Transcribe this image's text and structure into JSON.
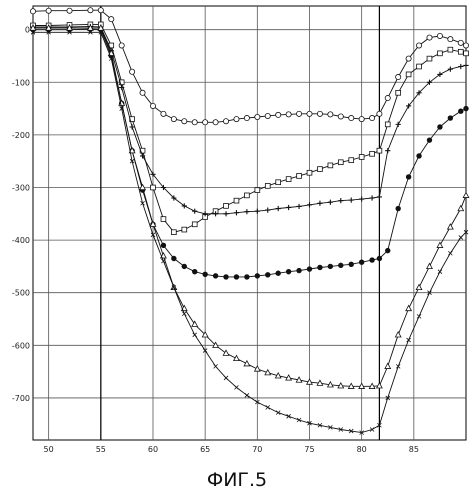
{
  "caption": "ФИГ.5",
  "chart_data": {
    "type": "line",
    "xlim": [
      48.5,
      90
    ],
    "ylim": [
      -780,
      45
    ],
    "grid": true,
    "x_ticks": [
      50,
      55,
      60,
      65,
      70,
      75,
      80,
      85
    ],
    "x_tick_labels": [
      "50",
      "55",
      "60",
      "65",
      "70",
      "75",
      "80",
      "85"
    ],
    "y_ticks": [
      0,
      -100,
      -200,
      -300,
      -400,
      -500,
      -600,
      -700
    ],
    "y_tick_labels": [
      "0",
      "-100",
      "-200",
      "-300",
      "-400",
      "-500",
      "-600",
      "-700"
    ],
    "series": [
      {
        "marker": "circle",
        "points": [
          [
            48.5,
            35
          ],
          [
            50,
            36
          ],
          [
            52,
            36
          ],
          [
            54,
            37
          ],
          [
            55,
            37
          ],
          [
            56,
            20
          ],
          [
            57,
            -30
          ],
          [
            58,
            -80
          ],
          [
            59,
            -120
          ],
          [
            60,
            -145
          ],
          [
            61,
            -160
          ],
          [
            62,
            -170
          ],
          [
            63,
            -174
          ],
          [
            64,
            -176
          ],
          [
            65,
            -176
          ],
          [
            66,
            -176
          ],
          [
            67,
            -174
          ],
          [
            68,
            -170
          ],
          [
            69,
            -168
          ],
          [
            70,
            -166
          ],
          [
            71,
            -164
          ],
          [
            72,
            -162
          ],
          [
            73,
            -161
          ],
          [
            74,
            -160
          ],
          [
            75,
            -160
          ],
          [
            76,
            -160
          ],
          [
            77,
            -161
          ],
          [
            78,
            -165
          ],
          [
            79,
            -168
          ],
          [
            80,
            -170
          ],
          [
            81,
            -168
          ],
          [
            81.7,
            -160
          ],
          [
            82.5,
            -130
          ],
          [
            83.5,
            -90
          ],
          [
            84.5,
            -55
          ],
          [
            85.5,
            -30
          ],
          [
            86.5,
            -15
          ],
          [
            87.5,
            -12
          ],
          [
            88.5,
            -18
          ],
          [
            89.5,
            -25
          ],
          [
            90,
            -30
          ]
        ]
      },
      {
        "marker": "square",
        "points": [
          [
            48.5,
            8
          ],
          [
            50,
            8
          ],
          [
            52,
            9
          ],
          [
            54,
            10
          ],
          [
            55,
            10
          ],
          [
            56,
            -30
          ],
          [
            57,
            -100
          ],
          [
            58,
            -170
          ],
          [
            59,
            -230
          ],
          [
            60,
            -300
          ],
          [
            61,
            -360
          ],
          [
            62,
            -385
          ],
          [
            63,
            -380
          ],
          [
            64,
            -370
          ],
          [
            65,
            -356
          ],
          [
            66,
            -345
          ],
          [
            67,
            -335
          ],
          [
            68,
            -325
          ],
          [
            69,
            -315
          ],
          [
            70,
            -305
          ],
          [
            71,
            -297
          ],
          [
            72,
            -290
          ],
          [
            73,
            -284
          ],
          [
            74,
            -278
          ],
          [
            75,
            -272
          ],
          [
            76,
            -265
          ],
          [
            77,
            -258
          ],
          [
            78,
            -252
          ],
          [
            79,
            -248
          ],
          [
            80,
            -242
          ],
          [
            81,
            -236
          ],
          [
            81.7,
            -230
          ],
          [
            82.5,
            -180
          ],
          [
            83.5,
            -120
          ],
          [
            84.5,
            -85
          ],
          [
            85.5,
            -70
          ],
          [
            86.5,
            -55
          ],
          [
            87.5,
            -45
          ],
          [
            88.5,
            -38
          ],
          [
            89.5,
            -42
          ],
          [
            90,
            -45
          ]
        ]
      },
      {
        "marker": "plus",
        "points": [
          [
            48.5,
            5
          ],
          [
            50,
            5
          ],
          [
            52,
            5
          ],
          [
            54,
            6
          ],
          [
            55,
            5
          ],
          [
            56,
            -40
          ],
          [
            57,
            -110
          ],
          [
            58,
            -185
          ],
          [
            59,
            -240
          ],
          [
            60,
            -275
          ],
          [
            61,
            -300
          ],
          [
            62,
            -320
          ],
          [
            63,
            -335
          ],
          [
            64,
            -345
          ],
          [
            65,
            -350
          ],
          [
            66,
            -350
          ],
          [
            67,
            -350
          ],
          [
            68,
            -348
          ],
          [
            69,
            -346
          ],
          [
            70,
            -345
          ],
          [
            71,
            -343
          ],
          [
            72,
            -340
          ],
          [
            73,
            -338
          ],
          [
            74,
            -336
          ],
          [
            75,
            -333
          ],
          [
            76,
            -330
          ],
          [
            77,
            -328
          ],
          [
            78,
            -325
          ],
          [
            79,
            -324
          ],
          [
            80,
            -322
          ],
          [
            81,
            -320
          ],
          [
            81.7,
            -318
          ],
          [
            82.5,
            -230
          ],
          [
            83.5,
            -180
          ],
          [
            84.5,
            -145
          ],
          [
            85.5,
            -120
          ],
          [
            86.5,
            -100
          ],
          [
            87.5,
            -85
          ],
          [
            88.5,
            -75
          ],
          [
            89.5,
            -70
          ],
          [
            90,
            -68
          ]
        ]
      },
      {
        "marker": "filled-circle",
        "points": [
          [
            48.5,
            0
          ],
          [
            50,
            0
          ],
          [
            52,
            0
          ],
          [
            54,
            1
          ],
          [
            55,
            0
          ],
          [
            56,
            -50
          ],
          [
            57,
            -140
          ],
          [
            58,
            -230
          ],
          [
            59,
            -305
          ],
          [
            60,
            -370
          ],
          [
            61,
            -410
          ],
          [
            62,
            -435
          ],
          [
            63,
            -450
          ],
          [
            64,
            -460
          ],
          [
            65,
            -465
          ],
          [
            66,
            -468
          ],
          [
            67,
            -470
          ],
          [
            68,
            -470
          ],
          [
            69,
            -470
          ],
          [
            70,
            -468
          ],
          [
            71,
            -466
          ],
          [
            72,
            -463
          ],
          [
            73,
            -460
          ],
          [
            74,
            -458
          ],
          [
            75,
            -455
          ],
          [
            76,
            -452
          ],
          [
            77,
            -450
          ],
          [
            78,
            -448
          ],
          [
            79,
            -446
          ],
          [
            80,
            -442
          ],
          [
            81,
            -438
          ],
          [
            81.7,
            -435
          ],
          [
            82.5,
            -420
          ],
          [
            83.5,
            -340
          ],
          [
            84.5,
            -280
          ],
          [
            85.5,
            -240
          ],
          [
            86.5,
            -210
          ],
          [
            87.5,
            -185
          ],
          [
            88.5,
            -168
          ],
          [
            89.5,
            -155
          ],
          [
            90,
            -150
          ]
        ]
      },
      {
        "marker": "triangle",
        "points": [
          [
            48.5,
            3
          ],
          [
            50,
            3
          ],
          [
            52,
            3
          ],
          [
            54,
            3
          ],
          [
            55,
            3
          ],
          [
            56,
            -45
          ],
          [
            57,
            -140
          ],
          [
            58,
            -230
          ],
          [
            59,
            -300
          ],
          [
            60,
            -370
          ],
          [
            61,
            -430
          ],
          [
            62,
            -490
          ],
          [
            63,
            -530
          ],
          [
            64,
            -560
          ],
          [
            65,
            -580
          ],
          [
            66,
            -600
          ],
          [
            67,
            -615
          ],
          [
            68,
            -625
          ],
          [
            69,
            -635
          ],
          [
            70,
            -645
          ],
          [
            71,
            -652
          ],
          [
            72,
            -658
          ],
          [
            73,
            -662
          ],
          [
            74,
            -666
          ],
          [
            75,
            -670
          ],
          [
            76,
            -672
          ],
          [
            77,
            -675
          ],
          [
            78,
            -677
          ],
          [
            79,
            -678
          ],
          [
            80,
            -678
          ],
          [
            81,
            -678
          ],
          [
            81.7,
            -677
          ],
          [
            82.5,
            -640
          ],
          [
            83.5,
            -580
          ],
          [
            84.5,
            -530
          ],
          [
            85.5,
            -490
          ],
          [
            86.5,
            -450
          ],
          [
            87.5,
            -410
          ],
          [
            88.5,
            -375
          ],
          [
            89.5,
            -340
          ],
          [
            90,
            -315
          ]
        ]
      },
      {
        "marker": "x",
        "points": [
          [
            48.5,
            -5
          ],
          [
            50,
            -5
          ],
          [
            52,
            -5
          ],
          [
            54,
            -5
          ],
          [
            55,
            -5
          ],
          [
            56,
            -55
          ],
          [
            57,
            -150
          ],
          [
            58,
            -250
          ],
          [
            59,
            -330
          ],
          [
            60,
            -390
          ],
          [
            61,
            -440
          ],
          [
            62,
            -490
          ],
          [
            63,
            -540
          ],
          [
            64,
            -580
          ],
          [
            65,
            -610
          ],
          [
            66,
            -640
          ],
          [
            67,
            -662
          ],
          [
            68,
            -680
          ],
          [
            69,
            -695
          ],
          [
            70,
            -708
          ],
          [
            71,
            -718
          ],
          [
            72,
            -728
          ],
          [
            73,
            -735
          ],
          [
            74,
            -742
          ],
          [
            75,
            -748
          ],
          [
            76,
            -752
          ],
          [
            77,
            -756
          ],
          [
            78,
            -760
          ],
          [
            79,
            -763
          ],
          [
            80,
            -766
          ],
          [
            81,
            -760
          ],
          [
            81.7,
            -752
          ],
          [
            82.5,
            -700
          ],
          [
            83.5,
            -640
          ],
          [
            84.5,
            -590
          ],
          [
            85.5,
            -545
          ],
          [
            86.5,
            -500
          ],
          [
            87.5,
            -460
          ],
          [
            88.5,
            -425
          ],
          [
            89.5,
            -395
          ],
          [
            90,
            -385
          ]
        ]
      }
    ]
  }
}
